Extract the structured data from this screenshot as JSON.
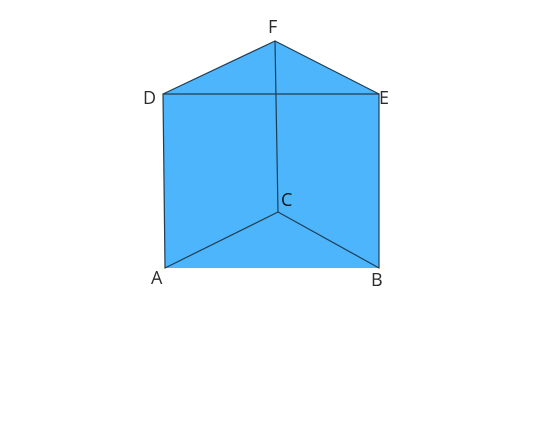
{
  "figure": {
    "colors": {
      "face": "#4db5fb",
      "edge": "#1e3d55",
      "label": "#2b2b2b",
      "background": "#ffffff"
    },
    "vertices": {
      "A": "A",
      "B": "B",
      "C": "C",
      "D": "D",
      "E": "E",
      "F": "F"
    }
  }
}
